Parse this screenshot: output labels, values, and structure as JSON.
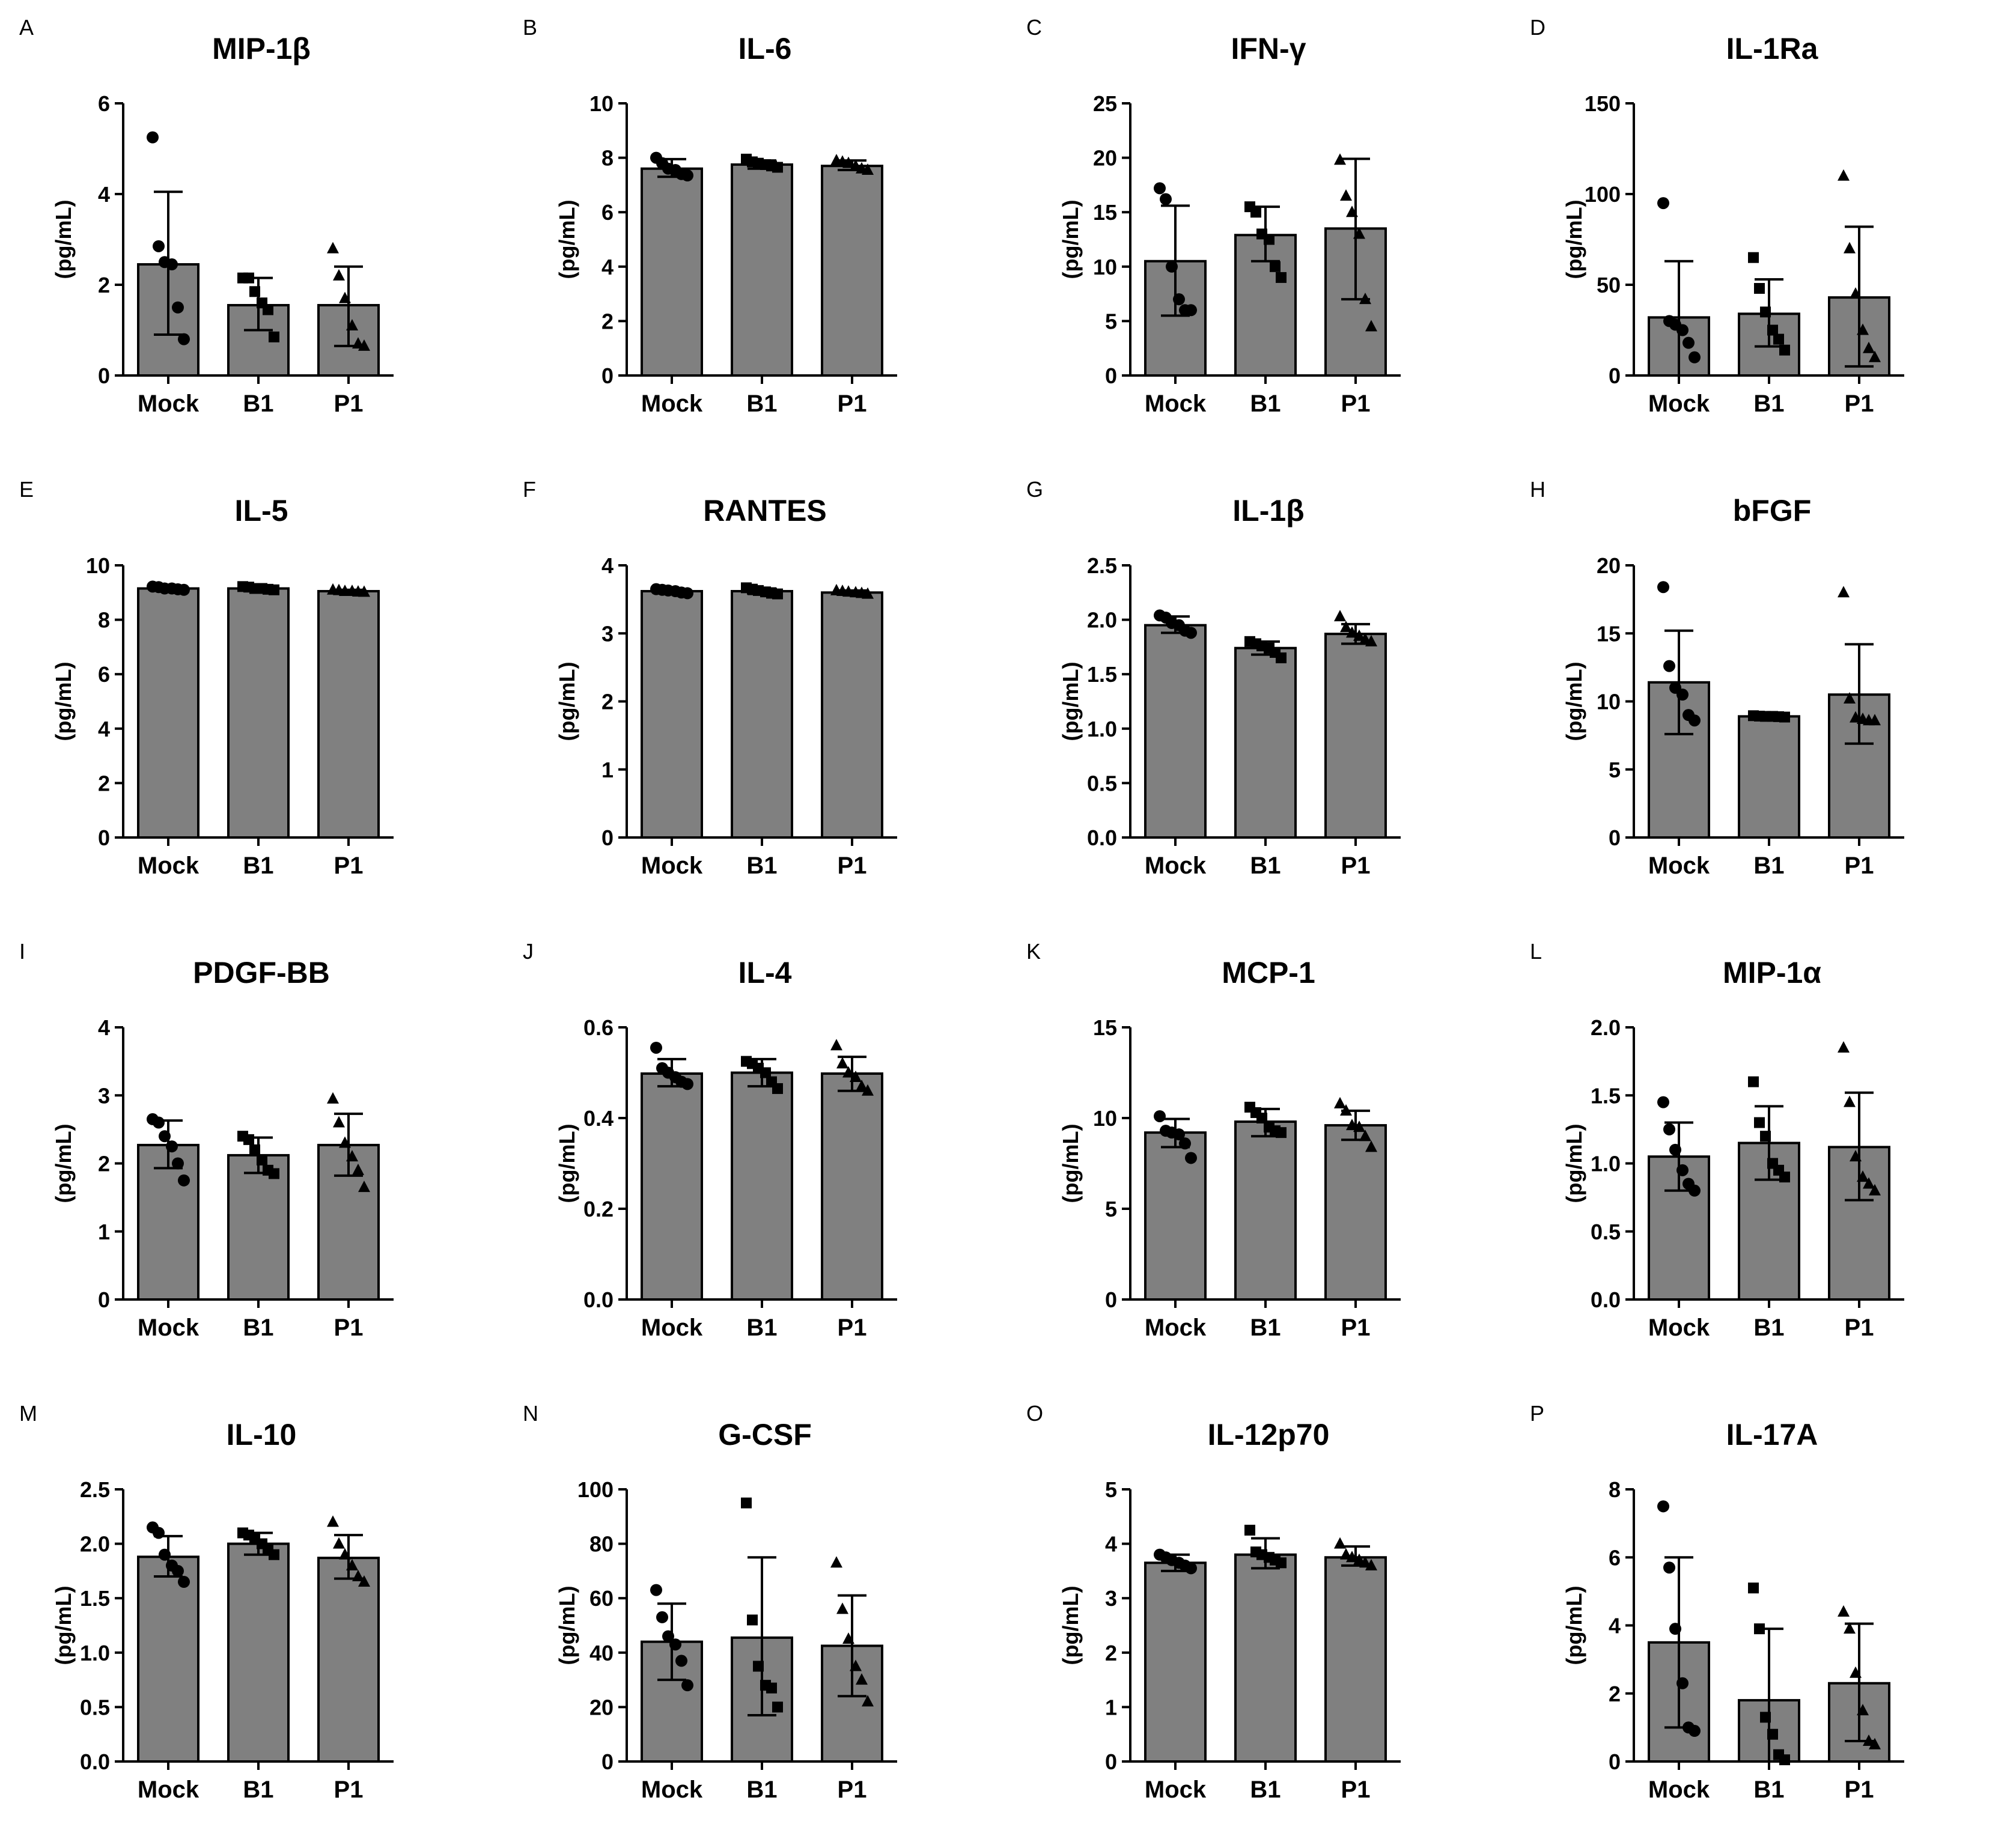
{
  "chart_data": [
    {
      "letter": "A",
      "title": "MIP-1β",
      "ylabel": "(pg/mL)",
      "ylim": [
        0,
        6
      ],
      "yticks": [
        0,
        2,
        4,
        6
      ],
      "categories": [
        "Mock",
        "B1",
        "P1"
      ],
      "series": [
        {
          "name": "Mock",
          "marker": "circle",
          "mean": 2.45,
          "sd_low": 0.9,
          "sd_high": 4.05,
          "points": [
            5.25,
            2.85,
            2.5,
            2.45,
            1.5,
            0.8
          ]
        },
        {
          "name": "B1",
          "marker": "square",
          "mean": 1.55,
          "sd_low": 1.0,
          "sd_high": 2.15,
          "points": [
            2.15,
            2.15,
            1.85,
            1.6,
            1.45,
            0.85
          ]
        },
        {
          "name": "P1",
          "marker": "triangle",
          "mean": 1.55,
          "sd_low": 0.65,
          "sd_high": 2.4,
          "points": [
            2.8,
            2.2,
            1.7,
            1.1,
            0.7,
            0.65
          ]
        }
      ]
    },
    {
      "letter": "B",
      "title": "IL-6",
      "ylabel": "(pg/mL)",
      "ylim": [
        0,
        10
      ],
      "yticks": [
        0,
        2,
        4,
        6,
        8,
        10
      ],
      "categories": [
        "Mock",
        "B1",
        "P1"
      ],
      "series": [
        {
          "name": "Mock",
          "marker": "circle",
          "mean": 7.6,
          "sd_low": 7.3,
          "sd_high": 7.95,
          "points": [
            8.0,
            7.8,
            7.6,
            7.55,
            7.4,
            7.35
          ]
        },
        {
          "name": "B1",
          "marker": "square",
          "mean": 7.75,
          "sd_low": 7.6,
          "sd_high": 7.9,
          "points": [
            7.95,
            7.85,
            7.8,
            7.75,
            7.7,
            7.65
          ]
        },
        {
          "name": "P1",
          "marker": "triangle",
          "mean": 7.7,
          "sd_low": 7.55,
          "sd_high": 7.9,
          "points": [
            7.9,
            7.85,
            7.8,
            7.7,
            7.6,
            7.55
          ]
        }
      ]
    },
    {
      "letter": "C",
      "title": "IFN-γ",
      "ylabel": "(pg/mL)",
      "ylim": [
        0,
        25
      ],
      "yticks": [
        0,
        5,
        10,
        15,
        20,
        25
      ],
      "categories": [
        "Mock",
        "B1",
        "P1"
      ],
      "series": [
        {
          "name": "Mock",
          "marker": "circle",
          "mean": 10.5,
          "sd_low": 5.5,
          "sd_high": 15.6,
          "points": [
            17.2,
            16.2,
            10.0,
            7.0,
            6.0,
            6.0
          ]
        },
        {
          "name": "B1",
          "marker": "square",
          "mean": 12.9,
          "sd_low": 10.5,
          "sd_high": 15.5,
          "points": [
            15.5,
            15.0,
            13.0,
            12.5,
            10.0,
            9.0
          ]
        },
        {
          "name": "P1",
          "marker": "triangle",
          "mean": 13.5,
          "sd_low": 7.0,
          "sd_high": 19.9,
          "points": [
            19.8,
            16.5,
            15.0,
            13.0,
            7.0,
            4.5
          ]
        }
      ]
    },
    {
      "letter": "D",
      "title": "IL-1Ra",
      "ylabel": "(pg/mL)",
      "ylim": [
        0,
        150
      ],
      "yticks": [
        0,
        50,
        100,
        150
      ],
      "categories": [
        "Mock",
        "B1",
        "P1"
      ],
      "series": [
        {
          "name": "Mock",
          "marker": "circle",
          "mean": 32,
          "sd_low": 0,
          "sd_high": 63,
          "points": [
            95,
            30,
            28,
            25,
            18,
            10
          ]
        },
        {
          "name": "B1",
          "marker": "square",
          "mean": 34,
          "sd_low": 16,
          "sd_high": 53,
          "points": [
            65,
            48,
            35,
            25,
            20,
            14
          ]
        },
        {
          "name": "P1",
          "marker": "triangle",
          "mean": 43,
          "sd_low": 5,
          "sd_high": 82,
          "points": [
            110,
            70,
            45,
            25,
            15,
            10
          ]
        }
      ]
    },
    {
      "letter": "E",
      "title": "IL-5",
      "ylabel": "(pg/mL)",
      "ylim": [
        0,
        10
      ],
      "yticks": [
        0,
        2,
        4,
        6,
        8,
        10
      ],
      "categories": [
        "Mock",
        "B1",
        "P1"
      ],
      "series": [
        {
          "name": "Mock",
          "marker": "circle",
          "mean": 9.15,
          "sd_low": 9.1,
          "sd_high": 9.22,
          "points": [
            9.22,
            9.2,
            9.15,
            9.15,
            9.12,
            9.1
          ]
        },
        {
          "name": "B1",
          "marker": "square",
          "mean": 9.15,
          "sd_low": 9.1,
          "sd_high": 9.22,
          "points": [
            9.22,
            9.2,
            9.15,
            9.15,
            9.12,
            9.1
          ]
        },
        {
          "name": "P1",
          "marker": "triangle",
          "mean": 9.05,
          "sd_low": 9.02,
          "sd_high": 9.1,
          "points": [
            9.1,
            9.08,
            9.05,
            9.05,
            9.03,
            9.02
          ]
        }
      ]
    },
    {
      "letter": "F",
      "title": "RANTES",
      "ylabel": "(pg/mL)",
      "ylim": [
        0,
        4
      ],
      "yticks": [
        0,
        1,
        2,
        3,
        4
      ],
      "categories": [
        "Mock",
        "B1",
        "P1"
      ],
      "series": [
        {
          "name": "Mock",
          "marker": "circle",
          "mean": 3.62,
          "sd_low": 3.59,
          "sd_high": 3.65,
          "points": [
            3.65,
            3.64,
            3.63,
            3.62,
            3.6,
            3.59
          ]
        },
        {
          "name": "B1",
          "marker": "square",
          "mean": 3.62,
          "sd_low": 3.58,
          "sd_high": 3.66,
          "points": [
            3.67,
            3.65,
            3.63,
            3.61,
            3.59,
            3.58
          ]
        },
        {
          "name": "P1",
          "marker": "triangle",
          "mean": 3.6,
          "sd_low": 3.58,
          "sd_high": 3.63,
          "points": [
            3.63,
            3.62,
            3.61,
            3.6,
            3.59,
            3.58
          ]
        }
      ]
    },
    {
      "letter": "G",
      "title": "IL-1β",
      "ylabel": "(pg/mL)",
      "ylim": [
        0,
        2.5
      ],
      "yticks": [
        "0.0",
        "0.5",
        "1.0",
        "1.5",
        "2.0",
        "2.5"
      ],
      "categories": [
        "Mock",
        "B1",
        "P1"
      ],
      "series": [
        {
          "name": "Mock",
          "marker": "circle",
          "mean": 1.95,
          "sd_low": 1.88,
          "sd_high": 2.03,
          "points": [
            2.04,
            2.02,
            1.97,
            1.95,
            1.9,
            1.88
          ]
        },
        {
          "name": "B1",
          "marker": "square",
          "mean": 1.74,
          "sd_low": 1.68,
          "sd_high": 1.8,
          "points": [
            1.8,
            1.78,
            1.76,
            1.74,
            1.7,
            1.65
          ]
        },
        {
          "name": "P1",
          "marker": "triangle",
          "mean": 1.87,
          "sd_low": 1.78,
          "sd_high": 1.96,
          "points": [
            2.03,
            1.93,
            1.88,
            1.85,
            1.82,
            1.8
          ]
        }
      ]
    },
    {
      "letter": "H",
      "title": "bFGF",
      "ylabel": "(pg/mL)",
      "ylim": [
        0,
        20
      ],
      "yticks": [
        0,
        5,
        10,
        15,
        20
      ],
      "categories": [
        "Mock",
        "B1",
        "P1"
      ],
      "series": [
        {
          "name": "Mock",
          "marker": "circle",
          "mean": 11.4,
          "sd_low": 7.6,
          "sd_high": 15.2,
          "points": [
            18.4,
            12.6,
            11.0,
            10.5,
            9.0,
            8.6
          ]
        },
        {
          "name": "B1",
          "marker": "square",
          "mean": 8.9,
          "sd_low": 8.85,
          "sd_high": 8.95,
          "points": [
            8.95,
            8.92,
            8.9,
            8.9,
            8.88,
            8.85
          ]
        },
        {
          "name": "P1",
          "marker": "triangle",
          "mean": 10.5,
          "sd_low": 6.9,
          "sd_high": 14.2,
          "points": [
            18.0,
            10.2,
            8.8,
            8.7,
            8.6,
            8.6
          ]
        }
      ]
    },
    {
      "letter": "I",
      "title": "PDGF-BB",
      "ylabel": "(pg/mL)",
      "ylim": [
        0,
        4
      ],
      "yticks": [
        0,
        1,
        2,
        3,
        4
      ],
      "categories": [
        "Mock",
        "B1",
        "P1"
      ],
      "series": [
        {
          "name": "Mock",
          "marker": "circle",
          "mean": 2.27,
          "sd_low": 1.93,
          "sd_high": 2.63,
          "points": [
            2.65,
            2.6,
            2.4,
            2.25,
            2.0,
            1.75
          ]
        },
        {
          "name": "B1",
          "marker": "square",
          "mean": 2.12,
          "sd_low": 1.86,
          "sd_high": 2.38,
          "points": [
            2.4,
            2.35,
            2.2,
            2.05,
            1.9,
            1.85
          ]
        },
        {
          "name": "P1",
          "marker": "triangle",
          "mean": 2.27,
          "sd_low": 1.82,
          "sd_high": 2.73,
          "points": [
            2.95,
            2.6,
            2.3,
            2.1,
            1.9,
            1.65
          ]
        }
      ]
    },
    {
      "letter": "J",
      "title": "IL-4",
      "ylabel": "(pg/mL)",
      "ylim": [
        0,
        0.6
      ],
      "yticks": [
        "0.0",
        "0.2",
        "0.4",
        "0.6"
      ],
      "categories": [
        "Mock",
        "B1",
        "P1"
      ],
      "series": [
        {
          "name": "Mock",
          "marker": "circle",
          "mean": 0.498,
          "sd_low": 0.47,
          "sd_high": 0.53,
          "points": [
            0.555,
            0.51,
            0.5,
            0.49,
            0.48,
            0.475
          ]
        },
        {
          "name": "B1",
          "marker": "square",
          "mean": 0.5,
          "sd_low": 0.47,
          "sd_high": 0.53,
          "points": [
            0.525,
            0.52,
            0.51,
            0.5,
            0.48,
            0.465
          ]
        },
        {
          "name": "P1",
          "marker": "triangle",
          "mean": 0.498,
          "sd_low": 0.46,
          "sd_high": 0.535,
          "points": [
            0.56,
            0.52,
            0.5,
            0.49,
            0.47,
            0.46
          ]
        }
      ]
    },
    {
      "letter": "K",
      "title": "MCP-1",
      "ylabel": "(pg/mL)",
      "ylim": [
        0,
        15
      ],
      "yticks": [
        0,
        5,
        10,
        15
      ],
      "categories": [
        "Mock",
        "B1",
        "P1"
      ],
      "series": [
        {
          "name": "Mock",
          "marker": "circle",
          "mean": 9.2,
          "sd_low": 8.4,
          "sd_high": 9.95,
          "points": [
            10.1,
            9.3,
            9.2,
            9.1,
            8.6,
            7.8
          ]
        },
        {
          "name": "B1",
          "marker": "square",
          "mean": 9.8,
          "sd_low": 9.0,
          "sd_high": 10.5,
          "points": [
            10.6,
            10.3,
            10.0,
            9.5,
            9.3,
            9.2
          ]
        },
        {
          "name": "P1",
          "marker": "triangle",
          "mean": 9.6,
          "sd_low": 8.8,
          "sd_high": 10.4,
          "points": [
            10.8,
            10.4,
            9.6,
            9.5,
            9.0,
            8.4
          ]
        }
      ]
    },
    {
      "letter": "L",
      "title": "MIP-1α",
      "ylabel": "(pg/mL)",
      "ylim": [
        0,
        2.0
      ],
      "yticks": [
        "0.0",
        "0.5",
        "1.0",
        "1.5",
        "2.0"
      ],
      "categories": [
        "Mock",
        "B1",
        "P1"
      ],
      "series": [
        {
          "name": "Mock",
          "marker": "circle",
          "mean": 1.05,
          "sd_low": 0.8,
          "sd_high": 1.3,
          "points": [
            1.45,
            1.25,
            1.1,
            0.95,
            0.85,
            0.8
          ]
        },
        {
          "name": "B1",
          "marker": "square",
          "mean": 1.15,
          "sd_low": 0.88,
          "sd_high": 1.42,
          "points": [
            1.6,
            1.3,
            1.2,
            1.0,
            0.95,
            0.9
          ]
        },
        {
          "name": "P1",
          "marker": "triangle",
          "mean": 1.12,
          "sd_low": 0.73,
          "sd_high": 1.52,
          "points": [
            1.85,
            1.45,
            1.05,
            0.9,
            0.85,
            0.8
          ]
        }
      ]
    },
    {
      "letter": "M",
      "title": "IL-10",
      "ylabel": "(pg/mL)",
      "ylim": [
        0,
        2.5
      ],
      "yticks": [
        "0.0",
        "0.5",
        "1.0",
        "1.5",
        "2.0",
        "2.5"
      ],
      "categories": [
        "Mock",
        "B1",
        "P1"
      ],
      "series": [
        {
          "name": "Mock",
          "marker": "circle",
          "mean": 1.88,
          "sd_low": 1.7,
          "sd_high": 2.07,
          "points": [
            2.15,
            2.1,
            1.9,
            1.8,
            1.75,
            1.65
          ]
        },
        {
          "name": "B1",
          "marker": "square",
          "mean": 2.0,
          "sd_low": 1.9,
          "sd_high": 2.1,
          "points": [
            2.1,
            2.08,
            2.05,
            2.0,
            1.95,
            1.9
          ]
        },
        {
          "name": "P1",
          "marker": "triangle",
          "mean": 1.87,
          "sd_low": 1.68,
          "sd_high": 2.08,
          "points": [
            2.2,
            2.0,
            1.9,
            1.8,
            1.7,
            1.65
          ]
        }
      ]
    },
    {
      "letter": "N",
      "title": "G-CSF",
      "ylabel": "(pg/mL)",
      "ylim": [
        0,
        100
      ],
      "yticks": [
        0,
        20,
        40,
        60,
        80,
        100
      ],
      "categories": [
        "Mock",
        "B1",
        "P1"
      ],
      "series": [
        {
          "name": "Mock",
          "marker": "circle",
          "mean": 44,
          "sd_low": 30,
          "sd_high": 58,
          "points": [
            63,
            53,
            46,
            43,
            37,
            28
          ]
        },
        {
          "name": "B1",
          "marker": "square",
          "mean": 45.5,
          "sd_low": 17,
          "sd_high": 75,
          "points": [
            95,
            52,
            35,
            28,
            27,
            20
          ]
        },
        {
          "name": "P1",
          "marker": "triangle",
          "mean": 42.5,
          "sd_low": 24,
          "sd_high": 61,
          "points": [
            73,
            56,
            45,
            35,
            30,
            22
          ]
        }
      ]
    },
    {
      "letter": "O",
      "title": "IL-12p70",
      "ylabel": "(pg/mL)",
      "ylim": [
        0,
        5
      ],
      "yticks": [
        0,
        1,
        2,
        3,
        4,
        5
      ],
      "categories": [
        "Mock",
        "B1",
        "P1"
      ],
      "series": [
        {
          "name": "Mock",
          "marker": "circle",
          "mean": 3.65,
          "sd_low": 3.5,
          "sd_high": 3.8,
          "points": [
            3.8,
            3.75,
            3.7,
            3.65,
            3.6,
            3.55
          ]
        },
        {
          "name": "B1",
          "marker": "square",
          "mean": 3.8,
          "sd_low": 3.55,
          "sd_high": 4.1,
          "points": [
            4.25,
            3.85,
            3.8,
            3.75,
            3.7,
            3.65
          ]
        },
        {
          "name": "P1",
          "marker": "triangle",
          "mean": 3.75,
          "sd_low": 3.6,
          "sd_high": 3.95,
          "points": [
            4.0,
            3.8,
            3.75,
            3.7,
            3.65,
            3.6
          ]
        }
      ]
    },
    {
      "letter": "P",
      "title": "IL-17A",
      "ylabel": "(pg/mL)",
      "ylim": [
        0,
        8
      ],
      "yticks": [
        0,
        2,
        4,
        6,
        8
      ],
      "categories": [
        "Mock",
        "B1",
        "P1"
      ],
      "series": [
        {
          "name": "Mock",
          "marker": "circle",
          "mean": 3.5,
          "sd_low": 1.0,
          "sd_high": 6.0,
          "points": [
            7.5,
            5.7,
            3.9,
            2.3,
            1.0,
            0.9
          ]
        },
        {
          "name": "B1",
          "marker": "square",
          "mean": 1.8,
          "sd_low": 0,
          "sd_high": 3.9,
          "points": [
            5.1,
            3.9,
            1.3,
            0.8,
            0.2,
            0.05
          ]
        },
        {
          "name": "P1",
          "marker": "triangle",
          "mean": 2.3,
          "sd_low": 0.6,
          "sd_high": 4.05,
          "points": [
            4.4,
            3.9,
            2.6,
            1.5,
            0.6,
            0.5
          ]
        }
      ]
    }
  ]
}
